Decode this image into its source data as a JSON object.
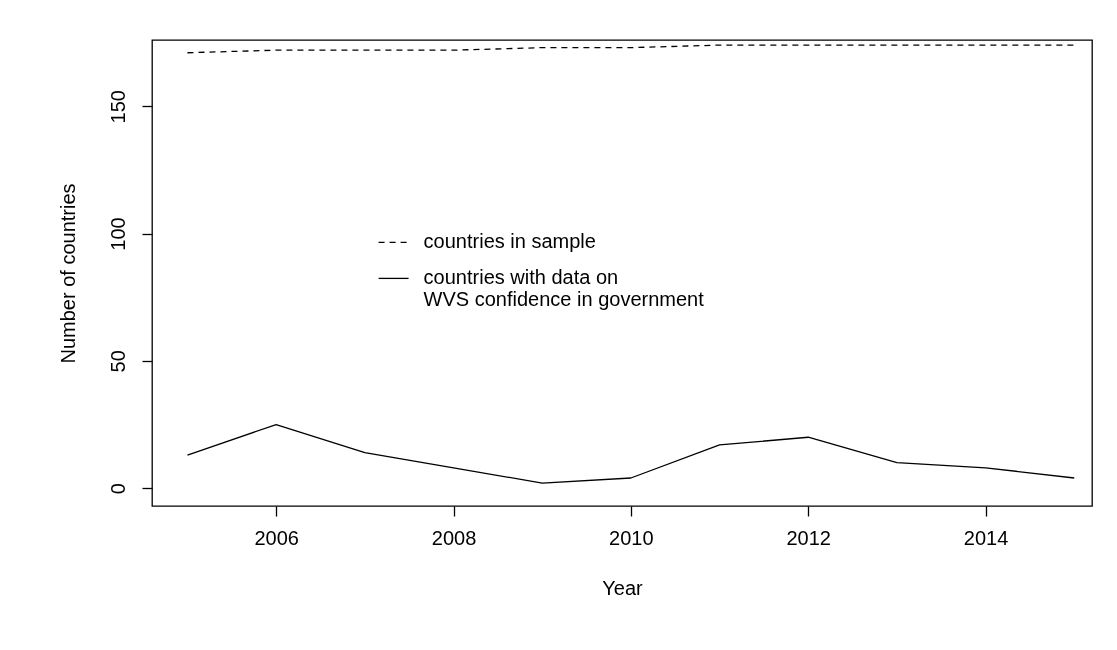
{
  "chart_data": {
    "type": "line",
    "xlabel": "Year",
    "ylabel": "Number of countries",
    "x": [
      2005,
      2006,
      2007,
      2008,
      2009,
      2010,
      2011,
      2012,
      2013,
      2014,
      2015
    ],
    "xlim": [
      2004.6,
      2015.2
    ],
    "xticks": [
      2006,
      2008,
      2010,
      2012,
      2014
    ],
    "ylim": [
      -7,
      176
    ],
    "yticks": [
      0,
      50,
      100,
      150
    ],
    "grid": false,
    "legend": "center",
    "marker": "none",
    "series": [
      {
        "name": "countries in sample",
        "color": "#000000",
        "line_style": "dashed",
        "values": [
          171,
          172,
          172,
          172,
          173,
          173,
          174,
          174,
          174,
          174,
          174
        ]
      },
      {
        "name": "countries with data on\nWVS confidence in government",
        "color": "#000000",
        "line_style": "solid",
        "values": [
          13,
          25,
          14,
          8,
          2,
          4,
          17,
          20,
          10,
          8,
          4
        ]
      }
    ]
  }
}
